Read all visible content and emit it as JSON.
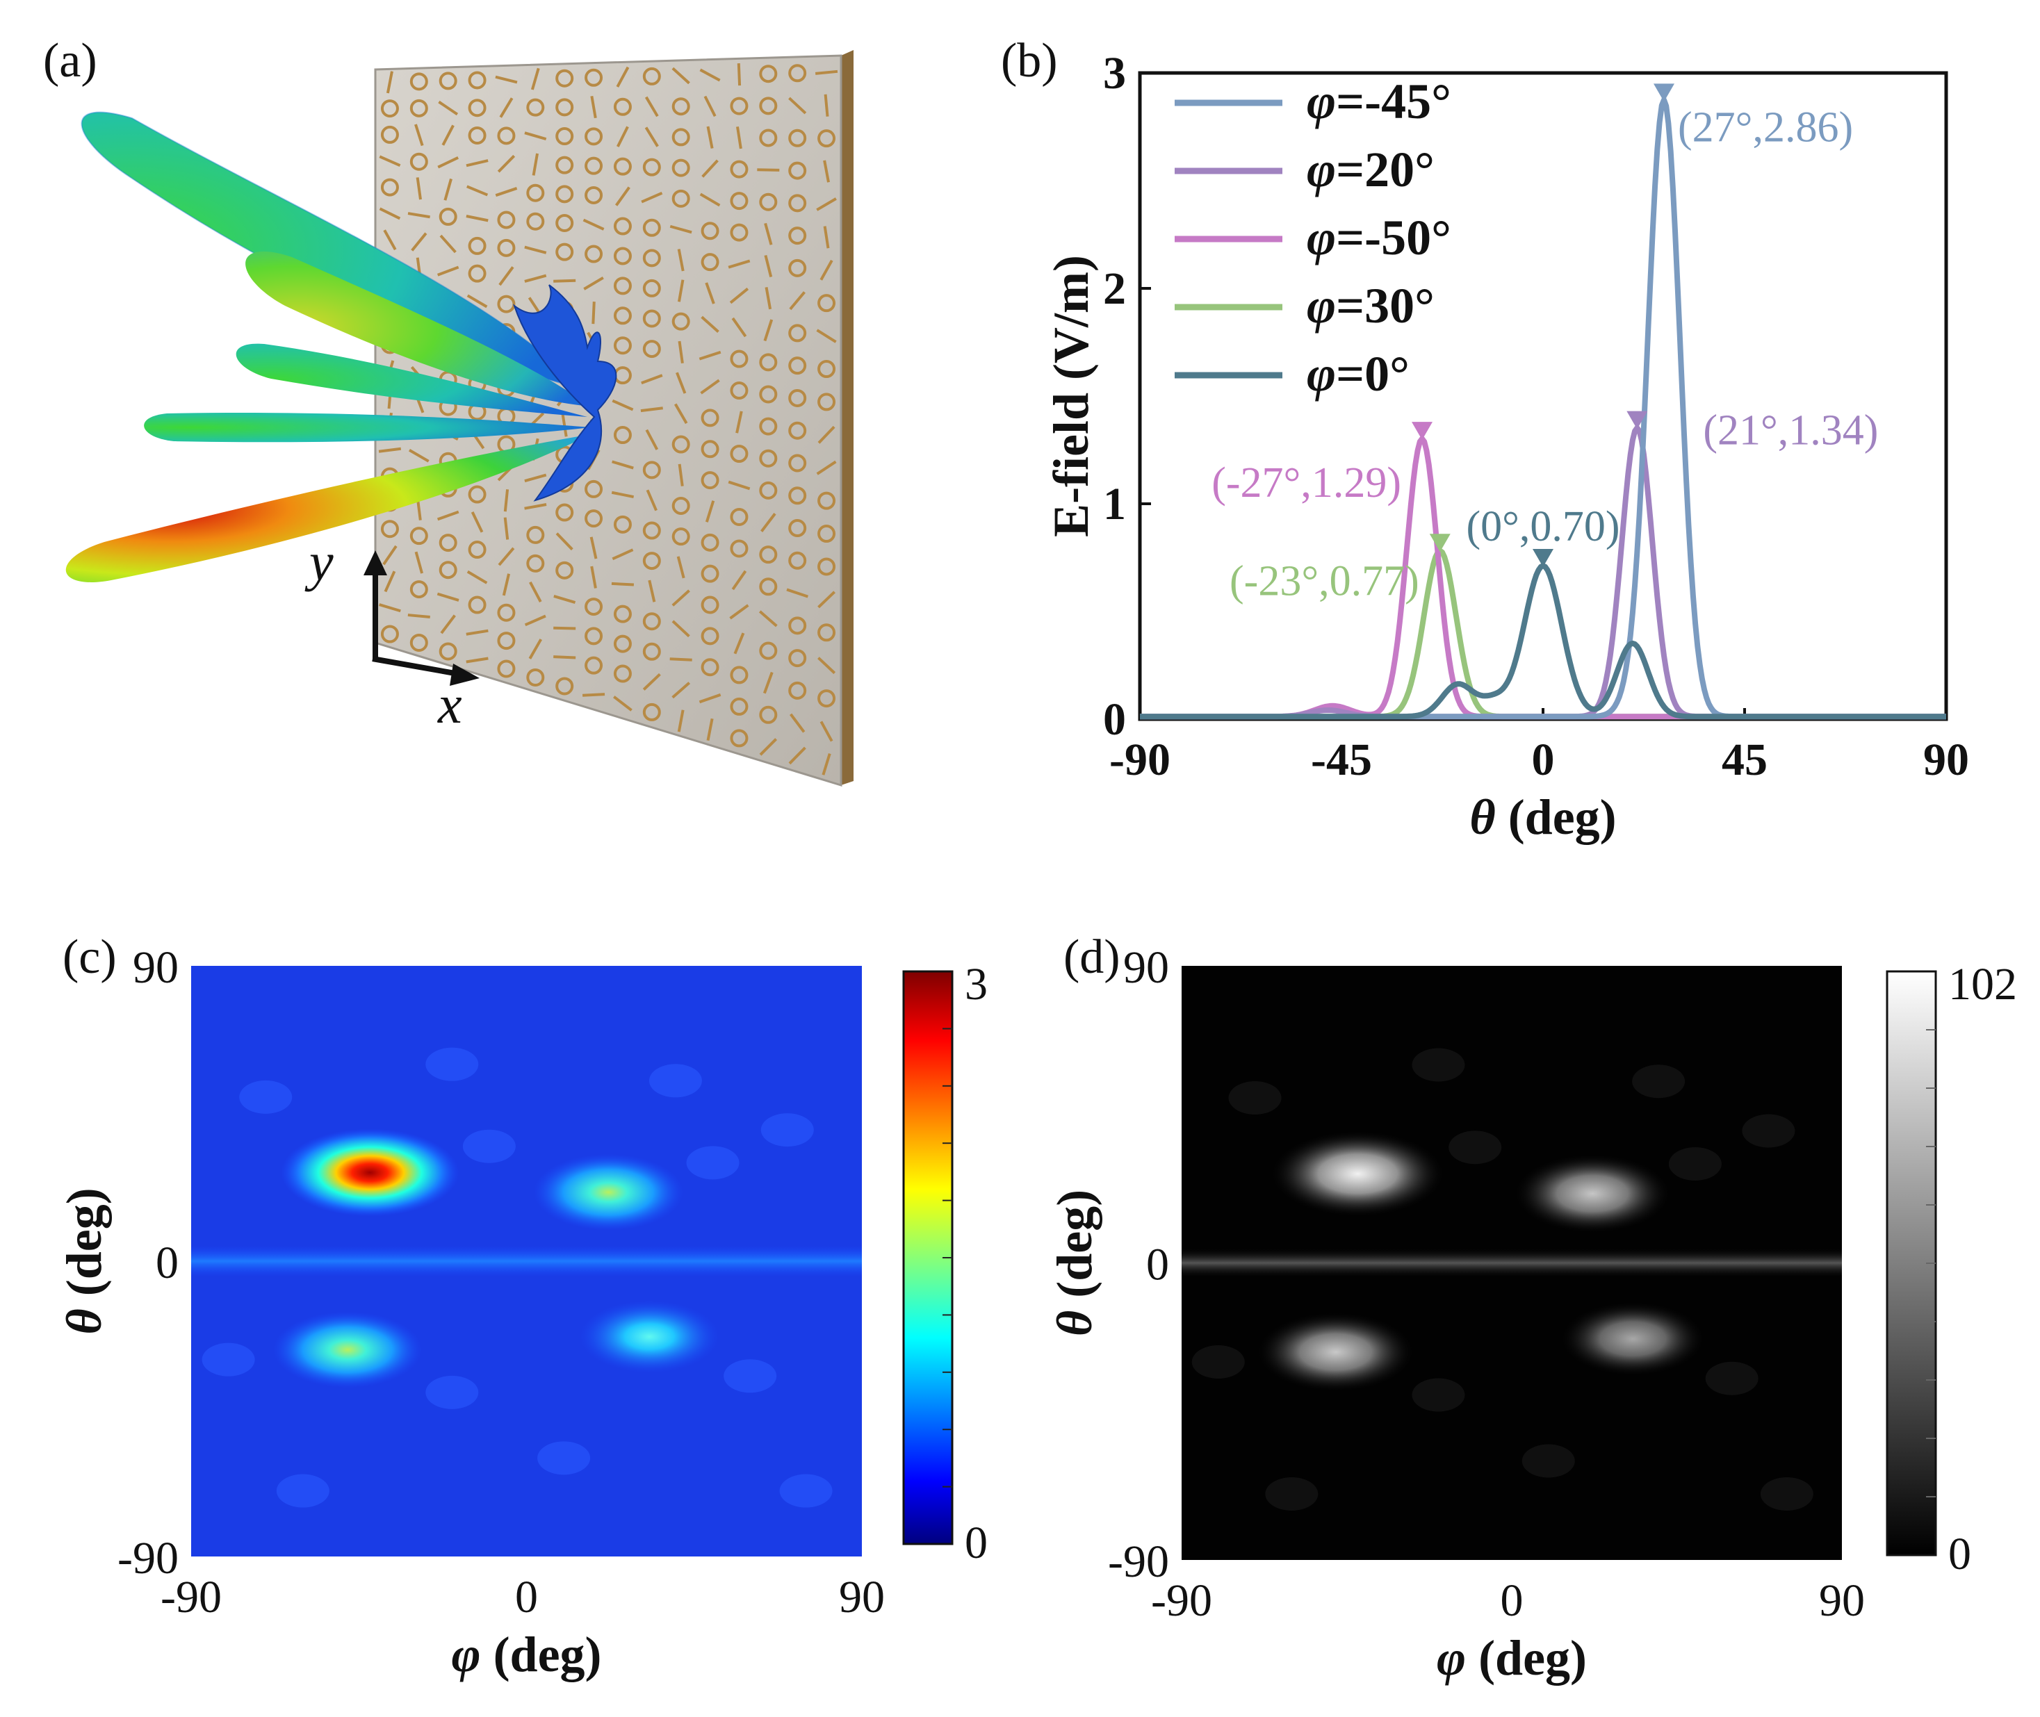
{
  "panels": {
    "a": {
      "label": "(a)",
      "axis_x": "x",
      "axis_y": "y"
    },
    "b": {
      "label": "(b)"
    },
    "c": {
      "label": "(c)"
    },
    "d": {
      "label": "(d)"
    }
  },
  "chart_data": [
    {
      "id": "b",
      "type": "line",
      "xlabel_sym": "θ",
      "xlabel_unit": " (deg)",
      "ylabel": "E-field (V/m)",
      "xlim": [
        -90,
        90
      ],
      "ylim": [
        0,
        3
      ],
      "xticks": [
        "-90",
        "-45",
        "0",
        "45",
        "90"
      ],
      "xtick_values": [
        -90,
        -45,
        0,
        45,
        90
      ],
      "yticks": [
        "0",
        "1",
        "2",
        "3"
      ],
      "ytick_values": [
        0,
        1,
        2,
        3
      ],
      "series": [
        {
          "name_sym": "φ",
          "name_val": "=-45°",
          "color": "#7b9bc0",
          "peaks": [
            {
              "x": 27,
              "y": 2.86,
              "w": 3.6
            },
            {
              "x": 20,
              "y": 0.05,
              "w": 3
            }
          ],
          "marker": {
            "x": 27,
            "y": 2.86
          },
          "label": "(27°,2.86)",
          "label_color": "#7b9bc0"
        },
        {
          "name_sym": "φ",
          "name_val": "=20°",
          "color": "#a083c0",
          "peaks": [
            {
              "x": 21,
              "y": 1.34,
              "w": 3.4
            },
            {
              "x": -48,
              "y": 0.03,
              "w": 4
            }
          ],
          "marker": {
            "x": 21,
            "y": 1.34
          },
          "label": "(21°,1.34)",
          "label_color": "#a083c0"
        },
        {
          "name_sym": "φ",
          "name_val": "=-50°",
          "color": "#c67ac6",
          "peaks": [
            {
              "x": -27,
              "y": 1.29,
              "w": 3.4
            },
            {
              "x": -47,
              "y": 0.05,
              "w": 4
            }
          ],
          "marker": {
            "x": -27,
            "y": 1.29
          },
          "label": "(-27°,1.29)",
          "label_color": "#c67ac6"
        },
        {
          "name_sym": "φ",
          "name_val": "=30°",
          "color": "#97c47c",
          "peaks": [
            {
              "x": -23,
              "y": 0.77,
              "w": 3.6
            }
          ],
          "marker": {
            "x": -23,
            "y": 0.77
          },
          "label": "(-23°,0.77)",
          "label_color": "#97c47c"
        },
        {
          "name_sym": "φ",
          "name_val": "=0°",
          "color": "#4f7a8c",
          "peaks": [
            {
              "x": 0,
              "y": 0.7,
              "w": 4.2
            },
            {
              "x": 20,
              "y": 0.34,
              "w": 3.5
            },
            {
              "x": -19,
              "y": 0.15,
              "w": 3.5
            },
            {
              "x": -11,
              "y": 0.07,
              "w": 3
            }
          ],
          "marker": {
            "x": 0,
            "y": 0.7
          },
          "label": "(0°,0.70)",
          "label_color": "#4f7a8c"
        }
      ]
    },
    {
      "id": "c",
      "type": "heatmap",
      "colormap": "jet",
      "xlabel_sym": "φ",
      "xlabel_unit": " (deg)",
      "ylabel_sym": "θ",
      "ylabel_unit": " (deg)",
      "xlim": [
        -90,
        90
      ],
      "ylim": [
        -90,
        90
      ],
      "xticks": [
        "-90",
        "0",
        "90"
      ],
      "yticks": [
        "90",
        "0",
        "-90"
      ],
      "colorbar": {
        "min": 0,
        "max": 3,
        "min_label": "0",
        "max_label": "3"
      },
      "spots": [
        {
          "phi": -42,
          "theta": 27,
          "value": 2.86
        },
        {
          "phi": 22,
          "theta": 21,
          "value": 1.34
        },
        {
          "phi": -48,
          "theta": -27,
          "value": 1.29
        },
        {
          "phi": 33,
          "theta": -23,
          "value": 0.77
        }
      ],
      "band": {
        "theta": 0,
        "value": 0.7
      }
    },
    {
      "id": "d",
      "type": "heatmap",
      "colormap": "gray",
      "xlabel_sym": "φ",
      "xlabel_unit": " (deg)",
      "ylabel_sym": "θ",
      "ylabel_unit": " (deg)",
      "xlim": [
        -90,
        90
      ],
      "ylim": [
        -90,
        90
      ],
      "xticks": [
        "-90",
        "0",
        "90"
      ],
      "yticks": [
        "90",
        "0",
        "-90"
      ],
      "colorbar": {
        "min": 0,
        "max": 102,
        "min_label": "0",
        "max_label": "102"
      },
      "spots": [
        {
          "phi": -42,
          "theta": 27,
          "value": 92
        },
        {
          "phi": 22,
          "theta": 21,
          "value": 60
        },
        {
          "phi": -48,
          "theta": -27,
          "value": 62
        },
        {
          "phi": 33,
          "theta": -23,
          "value": 38
        }
      ],
      "band": {
        "theta": 0,
        "value": 42
      }
    }
  ]
}
